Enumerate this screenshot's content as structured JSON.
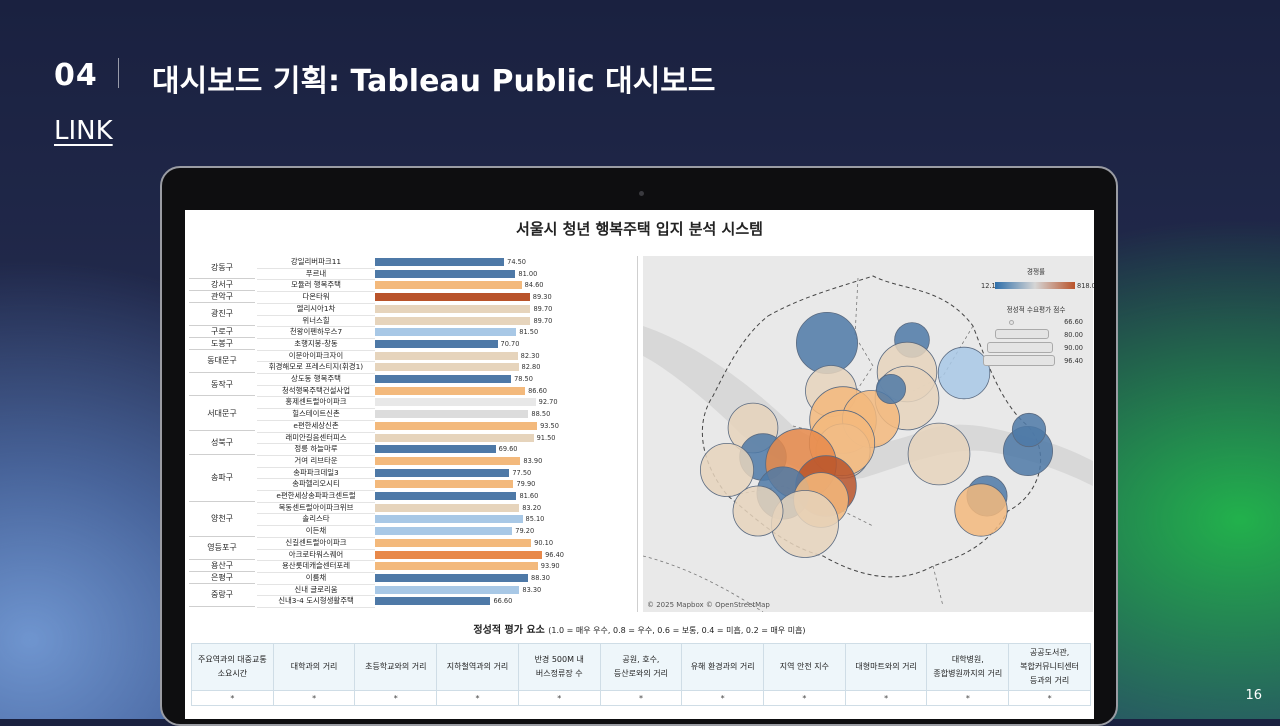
{
  "slide": {
    "number": "04",
    "title": "대시보드 기획: Tableau Public 대시보드",
    "link": "LINK",
    "page": "16"
  },
  "dashboard": {
    "title": "서울시 청년 행복주택 입지 분석 시스템",
    "map_credit": "© 2025 Mapbox © OpenStreetMap",
    "legend": {
      "color_title": "경쟁률",
      "color_min": "12.1",
      "color_max": "818.0",
      "size_title": "정성적 수요평가 점수",
      "sizes": [
        "66.60",
        "80.00",
        "90.00",
        "96.40"
      ]
    },
    "eval_title": "정성적 평가 요소",
    "eval_subtitle": "(1.0 = 매우 우수, 0.8 = 우수, 0.6 = 보통, 0.4 = 미흡, 0.2 = 매우 미흡)",
    "eval_headers": [
      "주요역과의 대중교통\n소요시간",
      "대학과의 거리",
      "초등학교와의 거리",
      "지하철역과의 거리",
      "반경 500M 내\n버스정류장 수",
      "공원, 호수,\n등산로와의 거리",
      "유해 환경과의 거리",
      "지역 안전 지수",
      "대형마트와의 거리",
      "대학병원,\n종합병원까지의 거리",
      "공공도서관,\n복합커뮤니티센터\n등과의 거리"
    ],
    "eval_values": [
      "*",
      "*",
      "*",
      "*",
      "*",
      "*",
      "*",
      "*",
      "*",
      "*",
      "*"
    ]
  },
  "colors": {
    "blue_dark": "#4e79a7",
    "blue_light": "#a8c8e6",
    "beige": "#e6d4bc",
    "orange": "#f3b97c",
    "orange_strong": "#e8894a",
    "rust": "#b9532a"
  },
  "chart_data": {
    "type": "bar",
    "districts": [
      {
        "name": "강동구",
        "rows": 2
      },
      {
        "name": "강서구",
        "rows": 1
      },
      {
        "name": "관악구",
        "rows": 1
      },
      {
        "name": "광진구",
        "rows": 2
      },
      {
        "name": "구로구",
        "rows": 1
      },
      {
        "name": "도봉구",
        "rows": 1
      },
      {
        "name": "동대문구",
        "rows": 2
      },
      {
        "name": "동작구",
        "rows": 2
      },
      {
        "name": "서대문구",
        "rows": 3
      },
      {
        "name": "성북구",
        "rows": 2
      },
      {
        "name": "송파구",
        "rows": 4
      },
      {
        "name": "양천구",
        "rows": 3
      },
      {
        "name": "영등포구",
        "rows": 2
      },
      {
        "name": "용산구",
        "rows": 1
      },
      {
        "name": "은평구",
        "rows": 1
      },
      {
        "name": "중랑구",
        "rows": 2
      }
    ],
    "categories": [
      "강일리버파크11",
      "푸르내",
      "모듈러 행복주택",
      "다온타워",
      "엘리시아1차",
      "위너스힐",
      "천왕이펜하우스7",
      "초행지봉-창동",
      "이문아이파크자이",
      "휘경해모로 프레스티지(휘경1)",
      "상도동 행복주택",
      "청석행복주택건설사업",
      "홍제센트럴아이파크",
      "힐스테이트신촌",
      "e편한세상신촌",
      "래미안길음센터피스",
      "정릉 하늘마루",
      "거여 리브타운",
      "송파파크데일3",
      "송파헬리오시티",
      "e편한세상송파파크센트럴",
      "목동센트럴아이파크위브",
      "솔리스타",
      "이든채",
      "신길센트럴아이파크",
      "아크로타워스퀘어",
      "용산롯데캐슬센터포레",
      "이룸채",
      "신내 글로리움",
      "신내3-4 도시형생활주택"
    ],
    "values": [
      74.5,
      81.0,
      84.6,
      89.3,
      89.7,
      89.7,
      81.5,
      70.7,
      82.3,
      82.8,
      78.5,
      86.6,
      92.7,
      88.5,
      93.5,
      91.5,
      69.6,
      83.9,
      77.5,
      79.9,
      81.6,
      83.2,
      85.1,
      79.2,
      90.1,
      96.4,
      93.9,
      88.3,
      83.3,
      66.6
    ],
    "labels": [
      "74.50",
      "81.00",
      "84.60",
      "89.30",
      "89.70",
      "89.70",
      "81.50",
      "70.70",
      "82.30",
      "82.80",
      "78.50",
      "86.60",
      "92.70",
      "88.50",
      "93.50",
      "91.50",
      "69.60",
      "83.90",
      "77.50",
      "79.90",
      "81.60",
      "83.20",
      "85.10",
      "79.20",
      "90.10",
      "96.40",
      "93.90",
      "88.30",
      "83.30",
      "66.60"
    ],
    "bar_colors": [
      "#4e79a7",
      "#4e79a7",
      "#f3b97c",
      "#b9532a",
      "#e6d4bc",
      "#e6d4bc",
      "#a8c8e6",
      "#4e79a7",
      "#e6d4bc",
      "#e6d4bc",
      "#4e79a7",
      "#f3b97c",
      "#e8e8e8",
      "#dcdcdc",
      "#f3b97c",
      "#e6d4bc",
      "#4e79a7",
      "#f3b97c",
      "#4e79a7",
      "#f3b97c",
      "#4e79a7",
      "#e6d4bc",
      "#a8c8e6",
      "#a8c8e6",
      "#f3b97c",
      "#e8894a",
      "#f3b97c",
      "#4e79a7",
      "#a8c8e6",
      "#4e79a7"
    ],
    "xlim": [
      0,
      150
    ],
    "bubbles": [
      {
        "value": 89.7,
        "color": "#4e79a7"
      },
      {
        "value": 70.7,
        "color": "#4e79a7"
      },
      {
        "value": 82.3,
        "color": "#e6d4bc"
      },
      {
        "value": 82.8,
        "color": "#a8c8e6"
      },
      {
        "value": 88.5,
        "color": "#e6d4bc"
      },
      {
        "value": 91.5,
        "color": "#e6d4bc"
      },
      {
        "value": 93.5,
        "color": "#f3b97c"
      },
      {
        "value": 86.6,
        "color": "#f3b97c"
      },
      {
        "value": 81.5,
        "color": "#e6d4bc"
      },
      {
        "value": 84.6,
        "color": "#e6d4bc"
      },
      {
        "value": 92.7,
        "color": "#f3b97c"
      },
      {
        "value": 79.2,
        "color": "#4e79a7"
      },
      {
        "value": 96.4,
        "color": "#e8894a"
      },
      {
        "value": 90.1,
        "color": "#e6d4bc"
      },
      {
        "value": 83.9,
        "color": "#e6d4bc"
      },
      {
        "value": 89.3,
        "color": "#b9532a"
      },
      {
        "value": 83.2,
        "color": "#4e79a7"
      },
      {
        "value": 85.1,
        "color": "#f3b97c"
      },
      {
        "value": 93.9,
        "color": "#e6d4bc"
      },
      {
        "value": 74.5,
        "color": "#4e79a7"
      },
      {
        "value": 81.0,
        "color": "#4e79a7"
      },
      {
        "value": 83.3,
        "color": "#f3b97c"
      },
      {
        "value": 69.6,
        "color": "#4e79a7"
      },
      {
        "value": 81.6,
        "color": "#e6d4bc"
      },
      {
        "value": 66.6,
        "color": "#4e79a7"
      }
    ]
  }
}
